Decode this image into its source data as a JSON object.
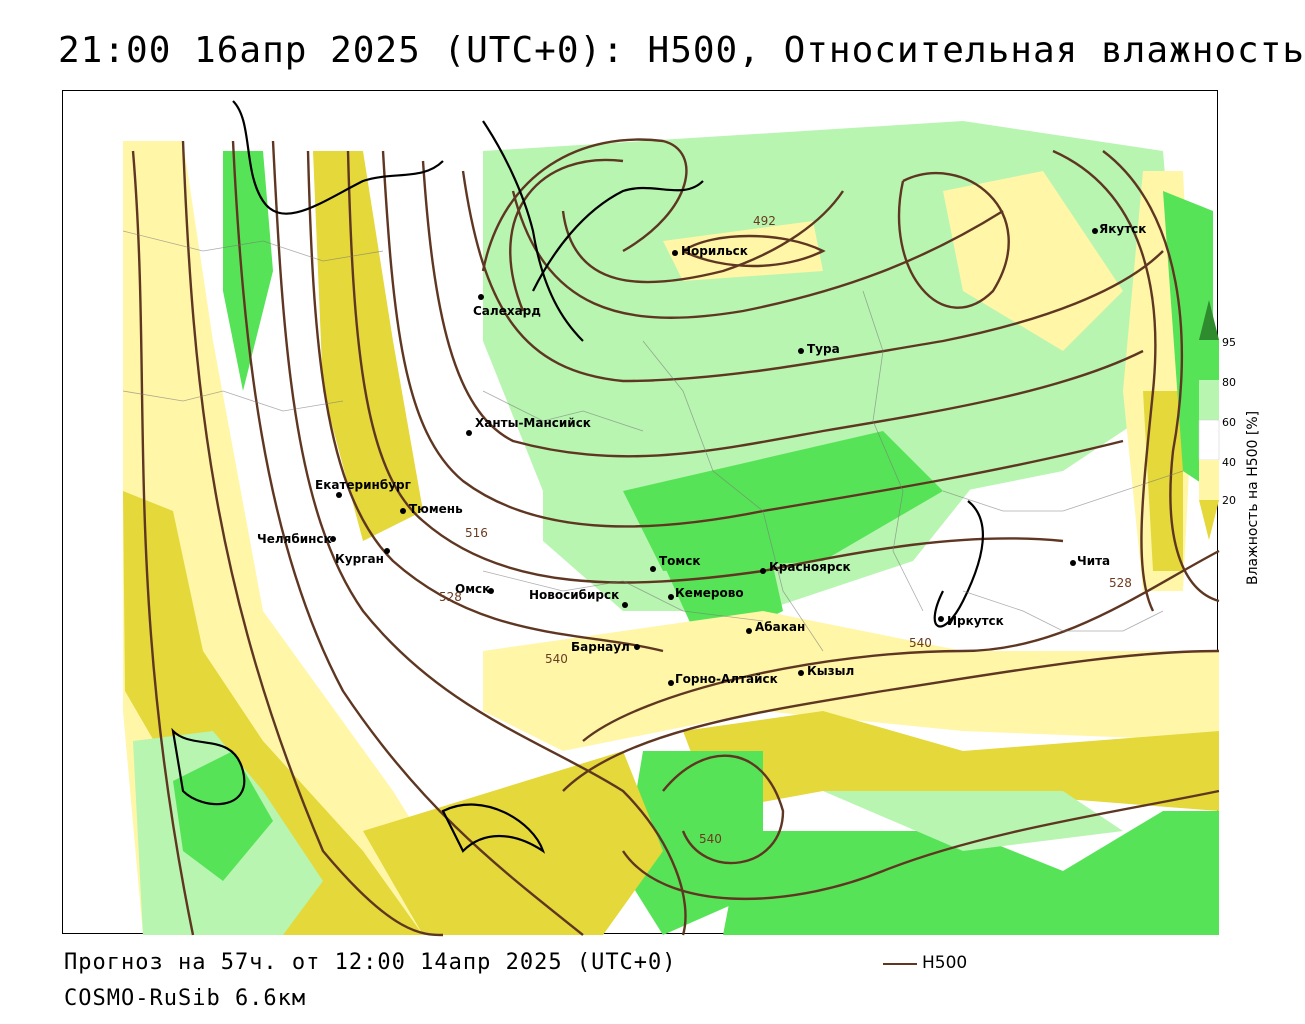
{
  "title": "21:00 16апр 2025 (UTC+0): Н500, Относительная влажность",
  "footer": {
    "forecast": "Прогноз на 57ч. от 12:00 14апр 2025 (UTC+0)",
    "model": "COSMO-RuSib 6.6км"
  },
  "legend": {
    "line_label": "Н500",
    "line_color": "#5e3621"
  },
  "colorbar": {
    "title": "Влажность на Н500 [%]",
    "ticks": [
      "95",
      "80",
      "60",
      "40",
      "20"
    ],
    "colors": {
      "dark_green": "#2e8b2e",
      "green": "#57e357",
      "light_green": "#b8f5b0",
      "white": "#ffffff",
      "light_yellow": "#fff6a8",
      "yellow": "#e4d83a"
    }
  },
  "cities": [
    {
      "name": "Норильск"
    },
    {
      "name": "Якутск"
    },
    {
      "name": "Салехард"
    },
    {
      "name": "Тура"
    },
    {
      "name": "Ханты-Мансийск"
    },
    {
      "name": "Екатеринбург"
    },
    {
      "name": "Тюмень"
    },
    {
      "name": "Челябинск"
    },
    {
      "name": "Курган"
    },
    {
      "name": "Омск"
    },
    {
      "name": "Томск"
    },
    {
      "name": "Красноярск"
    },
    {
      "name": "Новосибирск"
    },
    {
      "name": "Кемерово"
    },
    {
      "name": "Абакан"
    },
    {
      "name": "Барнаул"
    },
    {
      "name": "Горно-Алтайск"
    },
    {
      "name": "Кызыл"
    },
    {
      "name": "Иркутск"
    },
    {
      "name": "Чита"
    }
  ],
  "isolines": [
    "492",
    "516",
    "528",
    "540",
    "540",
    "540",
    "528"
  ]
}
